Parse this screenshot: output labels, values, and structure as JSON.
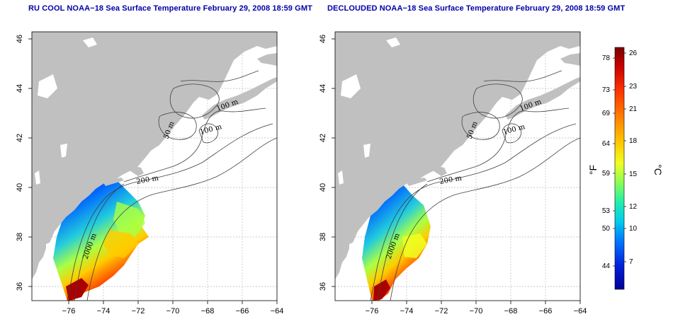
{
  "panels": [
    {
      "id": "left",
      "title": "RU COOL NOAA−18 Sea Surface Temperature February 29, 2008 18:59 GMT",
      "x_ticks": [
        "−76",
        "−74",
        "−72",
        "−70",
        "−68",
        "−66",
        "−64"
      ],
      "y_ticks": [
        "46",
        "44",
        "42",
        "40",
        "38",
        "36"
      ],
      "contour_labels": [
        "100 m",
        "100 m",
        "50 m",
        "200 m",
        "2000 m"
      ]
    },
    {
      "id": "right",
      "title": "DECLOUDED NOAA−18 Sea Surface Temperature February 29, 2008 18:59 GMT",
      "x_ticks": [
        "−76",
        "−74",
        "−72",
        "−70",
        "−68",
        "−66",
        "−64"
      ],
      "y_ticks": [
        "46",
        "44",
        "42",
        "40",
        "38",
        "36"
      ],
      "contour_labels": [
        "100 m",
        "100 m",
        "50 m",
        "200 m",
        "2000 m"
      ]
    }
  ],
  "colorbar": {
    "fahrenheit_labels": [
      "78",
      "73",
      "69",
      "64",
      "59",
      "53",
      "50",
      "44"
    ],
    "celsius_labels": [
      "26",
      "23",
      "21",
      "18",
      "15",
      "12",
      "10",
      "7"
    ],
    "unit_f": "°F",
    "unit_c": "°C",
    "colors": [
      "#7a0000",
      "#cc0000",
      "#ff3300",
      "#ff8800",
      "#ffcc00",
      "#eeff22",
      "#88ff55",
      "#22eeaa",
      "#00ccee",
      "#0077ff",
      "#0022dd",
      "#00009a"
    ]
  },
  "colors": {
    "land": "#c0c0c0",
    "contour": "#404040",
    "grid": "#bbbbbb",
    "title": "#0000aa"
  }
}
